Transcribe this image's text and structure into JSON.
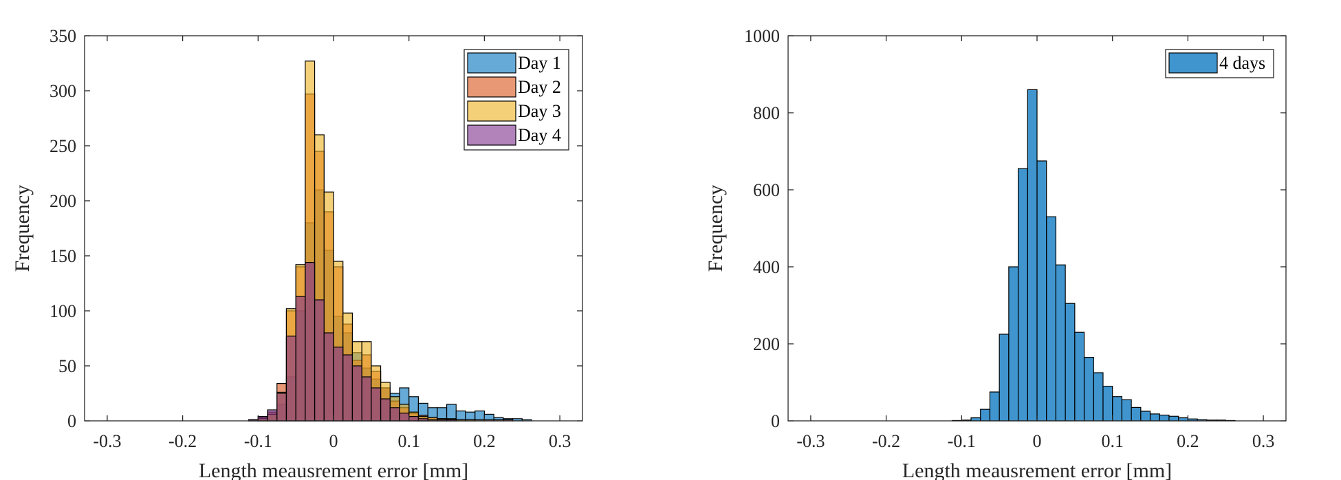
{
  "chart_data": [
    {
      "type": "histogram",
      "xlabel": "Length meausrement error [mm]",
      "ylabel": "Frequency",
      "xlim": [
        -0.33,
        0.33
      ],
      "ylim": [
        0,
        350
      ],
      "xticks": [
        -0.3,
        -0.2,
        -0.1,
        0,
        0.1,
        0.2,
        0.3
      ],
      "xtick_labels": [
        "-0.3",
        "-0.2",
        "-0.1",
        "0",
        "0.1",
        "0.2",
        "0.3"
      ],
      "yticks": [
        0,
        50,
        100,
        150,
        200,
        250,
        300,
        350
      ],
      "ytick_labels": [
        "0",
        "50",
        "100",
        "150",
        "200",
        "250",
        "300",
        "350"
      ],
      "bin_width": 0.0125,
      "bin_start": -0.3,
      "legend_position": "top-right",
      "series": [
        {
          "name": "Day 1",
          "color": "#0072BD",
          "values": [
            0,
            0,
            0,
            0,
            0,
            0,
            0,
            0,
            0,
            0,
            0,
            0,
            0,
            0,
            0,
            1,
            2,
            6,
            15,
            40,
            100,
            180,
            210,
            155,
            95,
            80,
            62,
            48,
            38,
            30,
            25,
            30,
            22,
            16,
            12,
            12,
            15,
            9,
            8,
            9,
            6,
            3,
            2,
            2,
            1,
            0,
            0,
            0
          ]
        },
        {
          "name": "Day 2",
          "color": "#D95319",
          "values": [
            0,
            0,
            0,
            0,
            0,
            0,
            0,
            0,
            0,
            0,
            0,
            0,
            0,
            0,
            0,
            1,
            3,
            8,
            34,
            100,
            140,
            297,
            245,
            190,
            140,
            88,
            55,
            60,
            45,
            30,
            18,
            12,
            7,
            5,
            3,
            2,
            2,
            1,
            1,
            1,
            1,
            1,
            1,
            0,
            0,
            0,
            0,
            0
          ]
        },
        {
          "name": "Day 3",
          "color": "#EDB120",
          "values": [
            0,
            0,
            0,
            0,
            0,
            0,
            0,
            0,
            0,
            0,
            0,
            0,
            0,
            0,
            0,
            0,
            2,
            6,
            26,
            102,
            142,
            327,
            260,
            208,
            145,
            98,
            72,
            72,
            50,
            35,
            22,
            15,
            8,
            4,
            3,
            2,
            1,
            1,
            1,
            0,
            0,
            0,
            0,
            0,
            0,
            0,
            0,
            0
          ]
        },
        {
          "name": "Day 4",
          "color": "#7E2F8E",
          "values": [
            0,
            0,
            0,
            0,
            0,
            0,
            0,
            0,
            0,
            0,
            0,
            0,
            0,
            0,
            0,
            1,
            4,
            10,
            25,
            77,
            113,
            144,
            110,
            80,
            67,
            60,
            50,
            40,
            30,
            20,
            12,
            7,
            4,
            2,
            1,
            1,
            1,
            0,
            0,
            0,
            0,
            0,
            0,
            0,
            0,
            0,
            0,
            0
          ]
        }
      ]
    },
    {
      "type": "histogram",
      "xlabel": "Length meausrement error [mm]",
      "ylabel": "Frequency",
      "xlim": [
        -0.33,
        0.33
      ],
      "ylim": [
        0,
        1000
      ],
      "xticks": [
        -0.3,
        -0.2,
        -0.1,
        0,
        0.1,
        0.2,
        0.3
      ],
      "xtick_labels": [
        "-0.3",
        "-0.2",
        "-0.1",
        "0",
        "0.1",
        "0.2",
        "0.3"
      ],
      "yticks": [
        0,
        200,
        400,
        600,
        800,
        1000
      ],
      "ytick_labels": [
        "0",
        "200",
        "400",
        "600",
        "800",
        "1000"
      ],
      "bin_width": 0.0125,
      "bin_start": -0.3,
      "legend_position": "top-right",
      "series": [
        {
          "name": "4 days",
          "color": "#0072BD",
          "values": [
            0,
            0,
            0,
            0,
            0,
            0,
            0,
            0,
            0,
            0,
            0,
            0,
            0,
            0,
            0,
            1,
            2,
            8,
            30,
            75,
            225,
            400,
            655,
            860,
            675,
            530,
            405,
            305,
            230,
            165,
            125,
            90,
            63,
            55,
            35,
            25,
            18,
            15,
            12,
            8,
            5,
            3,
            2,
            2,
            1,
            0,
            0,
            0
          ]
        }
      ]
    }
  ]
}
